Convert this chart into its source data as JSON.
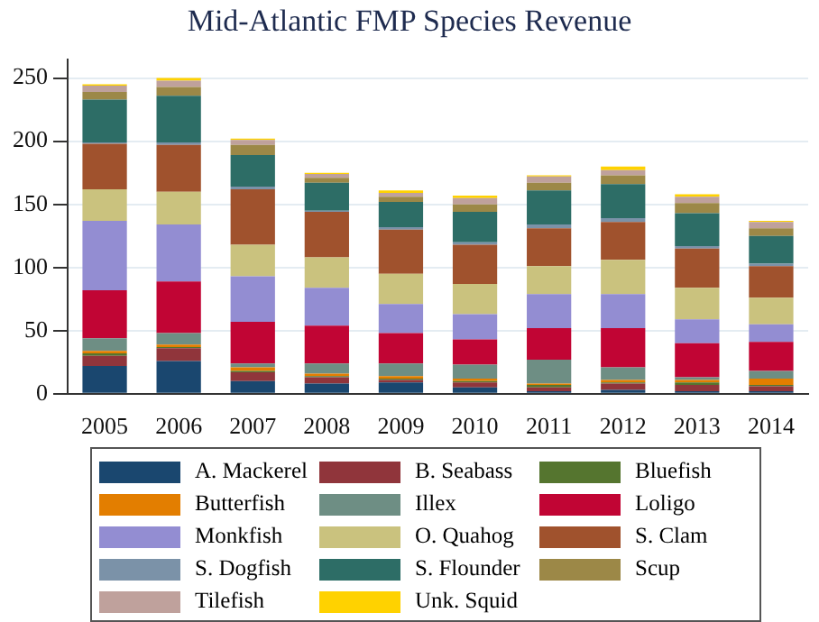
{
  "chart_data": {
    "type": "bar",
    "stacked": true,
    "title": "Mid-Atlantic FMP Species Revenue",
    "categories": [
      "2005",
      "2006",
      "2007",
      "2008",
      "2009",
      "2010",
      "2011",
      "2012",
      "2013",
      "2014"
    ],
    "ylim": [
      0,
      265
    ],
    "yticks": [
      0,
      50,
      100,
      150,
      200,
      250
    ],
    "grid": "y",
    "legend": "bottom",
    "series": [
      {
        "name": "A. Mackerel",
        "color": "#1a476f",
        "values": [
          22,
          26,
          10,
          8,
          9,
          5,
          2,
          3,
          2,
          2
        ]
      },
      {
        "name": "B. Seabass",
        "color": "#90353b",
        "values": [
          8,
          10,
          7,
          5,
          2,
          4,
          3,
          5,
          5,
          4
        ]
      },
      {
        "name": "Bluefish",
        "color": "#55752f",
        "values": [
          2,
          1,
          1,
          1,
          1,
          1,
          2,
          1,
          2,
          1
        ]
      },
      {
        "name": "Butterfish",
        "color": "#e37e00",
        "values": [
          2,
          2,
          3,
          2,
          2,
          2,
          1,
          2,
          2,
          5
        ]
      },
      {
        "name": "Illex",
        "color": "#6e8e84",
        "values": [
          10,
          9,
          3,
          8,
          10,
          11,
          19,
          10,
          2,
          6
        ]
      },
      {
        "name": "Loligo",
        "color": "#c10534",
        "values": [
          38,
          41,
          33,
          30,
          24,
          20,
          25,
          31,
          27,
          23
        ]
      },
      {
        "name": "Monkfish",
        "color": "#938dd2",
        "values": [
          55,
          45,
          36,
          30,
          23,
          20,
          27,
          27,
          19,
          14
        ]
      },
      {
        "name": "O. Quahog",
        "color": "#cac27e",
        "values": [
          25,
          26,
          25,
          24,
          24,
          24,
          22,
          27,
          25,
          21
        ]
      },
      {
        "name": "S. Clam",
        "color": "#a0522d",
        "values": [
          36,
          37,
          44,
          36,
          35,
          31,
          30,
          30,
          31,
          25
        ]
      },
      {
        "name": "S. Dogfish",
        "color": "#7b92a8",
        "values": [
          1,
          2,
          2,
          1,
          2,
          2,
          3,
          3,
          2,
          2
        ]
      },
      {
        "name": "S. Flounder",
        "color": "#2d6d66",
        "values": [
          34,
          37,
          25,
          22,
          20,
          24,
          27,
          27,
          26,
          22
        ]
      },
      {
        "name": "Scup",
        "color": "#9c8847",
        "values": [
          6,
          7,
          8,
          4,
          4,
          6,
          6,
          7,
          8,
          6
        ]
      },
      {
        "name": "Tilefish",
        "color": "#bfa19c",
        "values": [
          5,
          5,
          4,
          3,
          3,
          5,
          5,
          4,
          5,
          5
        ]
      },
      {
        "name": "Unk. Squid",
        "color": "#ffd200",
        "values": [
          1,
          2,
          1,
          1,
          2,
          2,
          1,
          3,
          2,
          1
        ]
      }
    ]
  }
}
